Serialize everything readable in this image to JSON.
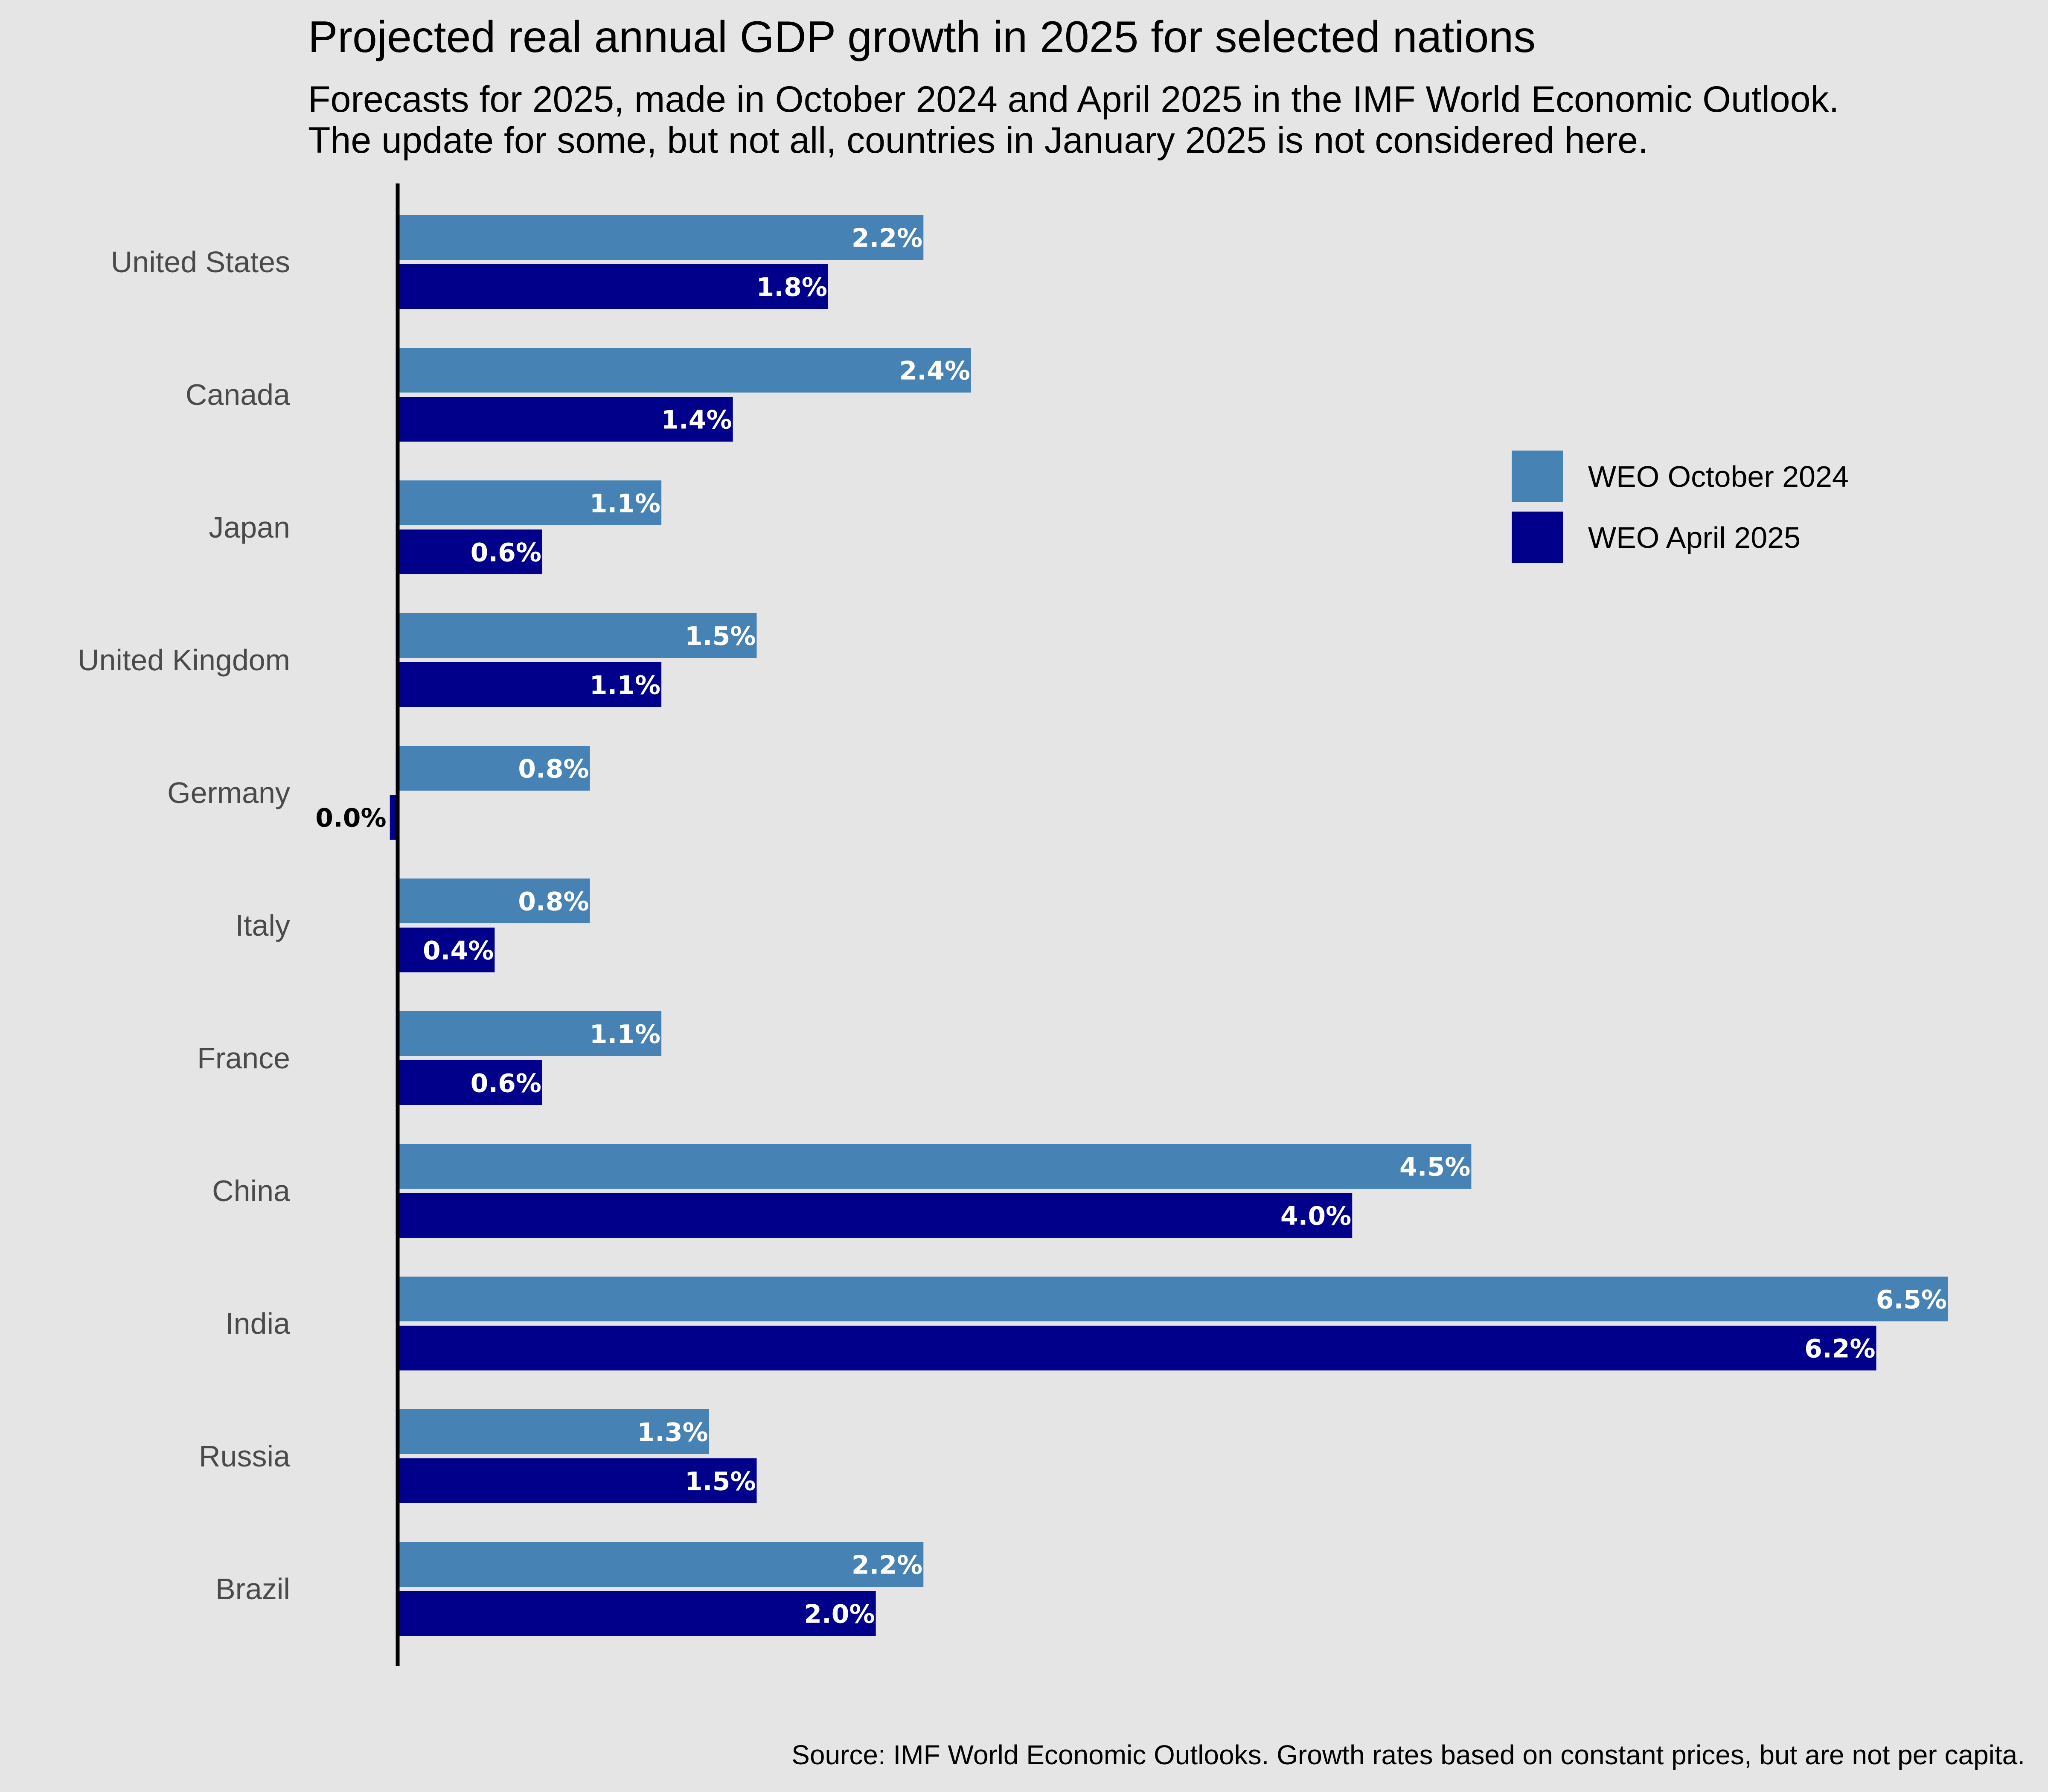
{
  "chart_data": {
    "type": "bar",
    "orientation": "horizontal",
    "title": "Projected real annual GDP growth in 2025 for selected nations",
    "subtitle": [
      "Forecasts for 2025, made in October 2024 and April 2025 in the IMF World Economic Outlook.",
      "The update for some, but not all, countries in January 2025 is not considered here."
    ],
    "caption": "Source: IMF World Economic Outlooks. Growth rates based on constant prices, but are not per capita.",
    "categories": [
      "United States",
      "Canada",
      "Japan",
      "United Kingdom",
      "Germany",
      "Italy",
      "France",
      "China",
      "India",
      "Russia",
      "Brazil"
    ],
    "series": [
      {
        "name": "WEO October 2024",
        "color": "#4682b4",
        "values": [
          2.2,
          2.4,
          1.1,
          1.5,
          0.8,
          0.8,
          1.1,
          4.5,
          6.5,
          1.3,
          2.2
        ],
        "labels": [
          "2.2%",
          "2.4%",
          "1.1%",
          "1.5%",
          "0.8%",
          "0.8%",
          "1.1%",
          "4.5%",
          "6.5%",
          "1.3%",
          "2.2%"
        ]
      },
      {
        "name": "WEO April 2025",
        "color": "#00008b",
        "values": [
          1.8,
          1.4,
          0.6,
          1.1,
          -0.04,
          0.4,
          0.6,
          4.0,
          6.2,
          1.5,
          2.0
        ],
        "labels": [
          "1.8%",
          "1.4%",
          "0.6%",
          "1.1%",
          "0.0%",
          "0.4%",
          "0.6%",
          "4.0%",
          "6.2%",
          "1.5%",
          "2.0%"
        ]
      }
    ],
    "xlim": [
      0,
      6.5
    ],
    "xlabel": "",
    "ylabel": "",
    "grid": false,
    "x_axis_ticks": false,
    "legend_position": "right",
    "background_color": "#e5e5e5",
    "label_color_inside": "#ffffff",
    "label_color_outside": "#000000",
    "axis_line_color": "#000000"
  }
}
